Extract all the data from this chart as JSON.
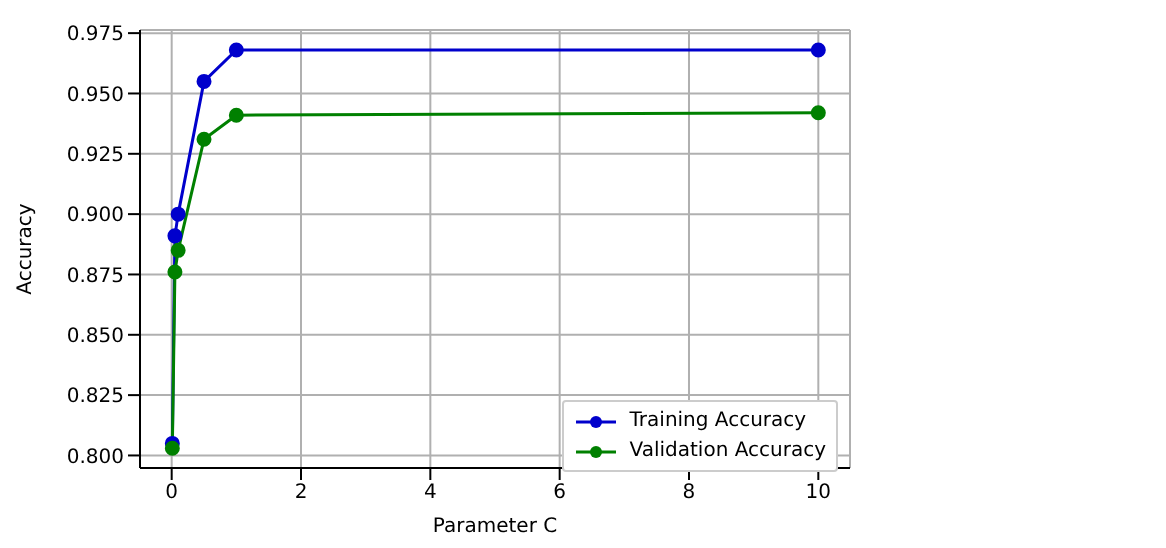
{
  "chart_data": {
    "type": "line",
    "xlabel": "Parameter C",
    "ylabel": "Accuracy",
    "x": [
      0.01,
      0.05,
      0.1,
      0.5,
      1,
      10
    ],
    "series": [
      {
        "name": "Training Accuracy",
        "color": "#0000cc",
        "values": [
          0.805,
          0.891,
          0.9,
          0.955,
          0.968,
          0.968
        ]
      },
      {
        "name": "Validation Accuracy",
        "color": "#008000",
        "values": [
          0.803,
          0.876,
          0.885,
          0.931,
          0.941,
          0.942
        ]
      }
    ],
    "xlim": [
      -0.49,
      10.49
    ],
    "ylim": [
      0.7948,
      0.9763
    ],
    "xticks": [
      0,
      2,
      4,
      6,
      8,
      10
    ],
    "yticks": [
      {
        "value": 0.8,
        "label": "0.800"
      },
      0.825,
      {
        "value": 0.85,
        "label": "0.850"
      },
      0.875,
      {
        "value": 0.9,
        "label": "0.900"
      },
      0.925,
      {
        "value": 0.95,
        "label": "0.950"
      },
      0.975
    ],
    "grid": true,
    "legend": "bottom right",
    "marker": "circle",
    "line_style": "solid"
  }
}
